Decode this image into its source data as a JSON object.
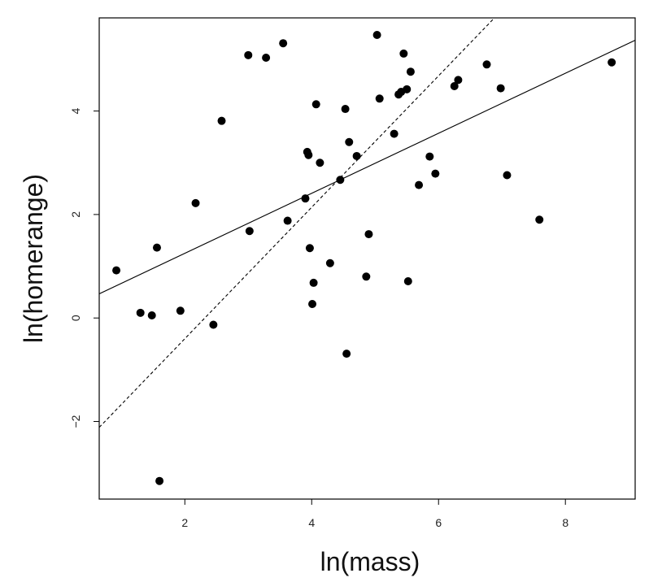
{
  "chart_data": {
    "type": "scatter",
    "xlabel": "ln(mass)",
    "ylabel": "ln(homerange)",
    "xlim": [
      0.65,
      9.1
    ],
    "ylim": [
      -3.5,
      5.8
    ],
    "x_ticks": [
      2,
      4,
      6,
      8
    ],
    "x_tick_labels": [
      "2",
      "4",
      "6",
      "8"
    ],
    "y_ticks": [
      -2,
      0,
      2,
      4
    ],
    "y_tick_labels": [
      "−2",
      "0",
      "2",
      "4"
    ],
    "grid": false,
    "points": [
      {
        "x": 0.92,
        "y": 0.92
      },
      {
        "x": 1.3,
        "y": 0.1
      },
      {
        "x": 1.48,
        "y": 0.05
      },
      {
        "x": 1.56,
        "y": 1.36
      },
      {
        "x": 1.6,
        "y": -3.15
      },
      {
        "x": 1.93,
        "y": 0.14
      },
      {
        "x": 2.17,
        "y": 2.22
      },
      {
        "x": 2.45,
        "y": -0.13
      },
      {
        "x": 2.58,
        "y": 3.81
      },
      {
        "x": 3.0,
        "y": 5.08
      },
      {
        "x": 3.02,
        "y": 1.68
      },
      {
        "x": 3.28,
        "y": 5.03
      },
      {
        "x": 3.55,
        "y": 5.31
      },
      {
        "x": 3.62,
        "y": 1.88
      },
      {
        "x": 3.9,
        "y": 2.31
      },
      {
        "x": 3.93,
        "y": 3.21
      },
      {
        "x": 3.95,
        "y": 3.15
      },
      {
        "x": 3.97,
        "y": 1.35
      },
      {
        "x": 4.01,
        "y": 0.27
      },
      {
        "x": 4.03,
        "y": 0.68
      },
      {
        "x": 4.07,
        "y": 4.13
      },
      {
        "x": 4.13,
        "y": 3.0
      },
      {
        "x": 4.29,
        "y": 1.06
      },
      {
        "x": 4.45,
        "y": 2.67
      },
      {
        "x": 4.53,
        "y": 4.04
      },
      {
        "x": 4.55,
        "y": -0.69
      },
      {
        "x": 4.59,
        "y": 3.4
      },
      {
        "x": 4.71,
        "y": 3.13
      },
      {
        "x": 4.86,
        "y": 0.8
      },
      {
        "x": 4.9,
        "y": 1.62
      },
      {
        "x": 5.03,
        "y": 5.47
      },
      {
        "x": 5.07,
        "y": 4.24
      },
      {
        "x": 5.3,
        "y": 3.56
      },
      {
        "x": 5.37,
        "y": 4.32
      },
      {
        "x": 5.41,
        "y": 4.37
      },
      {
        "x": 5.45,
        "y": 5.11
      },
      {
        "x": 5.5,
        "y": 4.42
      },
      {
        "x": 5.52,
        "y": 0.71
      },
      {
        "x": 5.56,
        "y": 4.76
      },
      {
        "x": 5.69,
        "y": 2.57
      },
      {
        "x": 5.86,
        "y": 3.12
      },
      {
        "x": 5.95,
        "y": 2.79
      },
      {
        "x": 6.25,
        "y": 4.48
      },
      {
        "x": 6.31,
        "y": 4.6
      },
      {
        "x": 6.76,
        "y": 4.9
      },
      {
        "x": 6.98,
        "y": 4.44
      },
      {
        "x": 7.08,
        "y": 2.76
      },
      {
        "x": 7.59,
        "y": 1.9
      },
      {
        "x": 8.73,
        "y": 4.94
      }
    ],
    "lines": [
      {
        "style": "solid",
        "intercept": 0.09,
        "slope": 0.58
      },
      {
        "style": "dashed",
        "intercept": -2.94,
        "slope": 1.27
      }
    ]
  }
}
